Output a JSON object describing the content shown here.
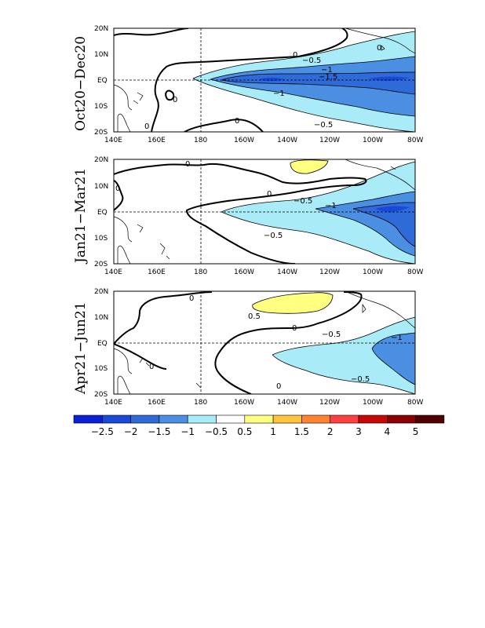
{
  "panels": [
    {
      "title": "Oct20−Dec20",
      "contour_labels": [
        "0",
        "−0.5",
        "−1",
        "−1.5",
        "−1",
        "−0.5",
        "0",
        "0",
        "0",
        "0"
      ],
      "fill_levels": [
        "-0.5",
        "-1",
        "-1.5"
      ]
    },
    {
      "title": "Jan21−Mar21",
      "contour_labels": [
        "0",
        "−0.5",
        "−1",
        "−0.5",
        "0",
        "0"
      ],
      "fill_levels": [
        "-0.5",
        "-1",
        "-1.5",
        "0.5"
      ]
    },
    {
      "title": "Apr21−Jun21",
      "contour_labels": [
        "0",
        "0.5",
        "0",
        "−0.5",
        "−1",
        "−0.5",
        "0",
        "0"
      ],
      "fill_levels": [
        "-0.5",
        "-1",
        "0.5"
      ]
    }
  ],
  "axes": {
    "lon_ticks": [
      "140E",
      "160E",
      "180",
      "160W",
      "140W",
      "120W",
      "100W",
      "80W"
    ],
    "lat_ticks": [
      "20N",
      "10N",
      "EQ",
      "10S",
      "20S"
    ]
  },
  "colorbar": {
    "labels": [
      "−2.5",
      "−2",
      "−1.5",
      "−1",
      "−0.5",
      "0.5",
      "1",
      "1.5",
      "2",
      "3",
      "4",
      "5"
    ],
    "colors": [
      "#0a1fd6",
      "#1a48d8",
      "#2f6ad9",
      "#4b8fe3",
      "#a9ecf7",
      "#ffffff",
      "#ffff80",
      "#ffc43a",
      "#ff8430",
      "#ff4040",
      "#c80808",
      "#8c0000",
      "#500000"
    ]
  }
}
